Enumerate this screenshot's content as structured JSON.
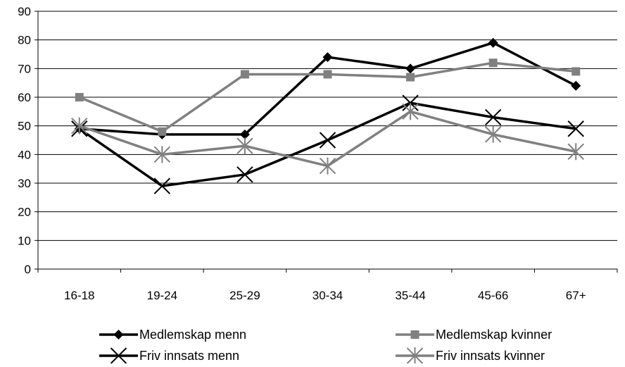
{
  "chart_data": {
    "type": "line",
    "categories": [
      "16-18",
      "19-24",
      "25-29",
      "30-34",
      "35-44",
      "45-66",
      "67+"
    ],
    "ylim": [
      0,
      90
    ],
    "yticks": [
      0,
      10,
      20,
      30,
      40,
      50,
      60,
      70,
      80,
      90
    ],
    "grid": true,
    "legend_position": "bottom",
    "series": [
      {
        "name": "Medlemskap menn",
        "values": [
          49,
          47,
          47,
          74,
          70,
          79,
          64
        ],
        "color": "#000000",
        "marker": "diamond"
      },
      {
        "name": "Medlemskap kvinner",
        "values": [
          60,
          48,
          68,
          68,
          67,
          72,
          69
        ],
        "color": "#808080",
        "marker": "square"
      },
      {
        "name": "Friv innsats menn",
        "values": [
          49,
          29,
          33,
          45,
          58,
          53,
          49
        ],
        "color": "#000000",
        "marker": "x"
      },
      {
        "name": "Friv innsats kvinner",
        "values": [
          50,
          40,
          43,
          36,
          55,
          47,
          41
        ],
        "color": "#808080",
        "marker": "asterisk"
      }
    ]
  }
}
